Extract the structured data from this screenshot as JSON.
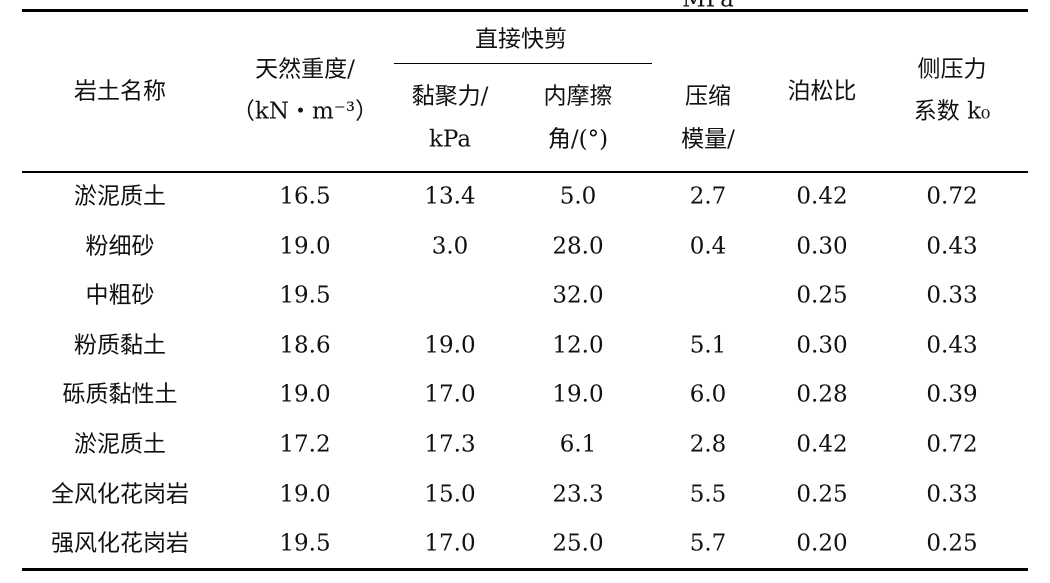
{
  "table": {
    "group_header": "直接快剪",
    "columns": [
      {
        "lines": [
          "岩土名称"
        ]
      },
      {
        "lines": [
          "天然重度/",
          "（kN・m⁻³）"
        ]
      },
      {
        "lines": [
          "黏聚力/",
          "kPa"
        ]
      },
      {
        "lines": [
          "内摩擦",
          "角/(°)"
        ]
      },
      {
        "lines": [
          "压缩",
          "模量/",
          "MPa"
        ]
      },
      {
        "lines": [
          "泊松比"
        ]
      },
      {
        "lines": [
          "侧压力",
          "系数 k₀"
        ]
      }
    ],
    "rows": [
      [
        "淤泥质土",
        "16.5",
        "13.4",
        "5.0",
        "2.7",
        "0.42",
        "0.72"
      ],
      [
        "粉细砂",
        "19.0",
        "3.0",
        "28.0",
        "0.4",
        "0.30",
        "0.43"
      ],
      [
        "中粗砂",
        "19.5",
        null,
        "32.0",
        null,
        "0.25",
        "0.33"
      ],
      [
        "粉质黏土",
        "18.6",
        "19.0",
        "12.0",
        "5.1",
        "0.30",
        "0.43"
      ],
      [
        "砾质黏性土",
        "19.0",
        "17.0",
        "19.0",
        "6.0",
        "0.28",
        "0.39"
      ],
      [
        "淤泥质土",
        "17.2",
        "17.3",
        "6.1",
        "2.8",
        "0.42",
        "0.72"
      ],
      [
        "全风化花岗岩",
        "19.0",
        "15.0",
        "23.3",
        "5.5",
        "0.25",
        "0.33"
      ],
      [
        "强风化花岗岩",
        "19.5",
        "17.0",
        "25.0",
        "5.7",
        "0.20",
        "0.25"
      ]
    ]
  }
}
